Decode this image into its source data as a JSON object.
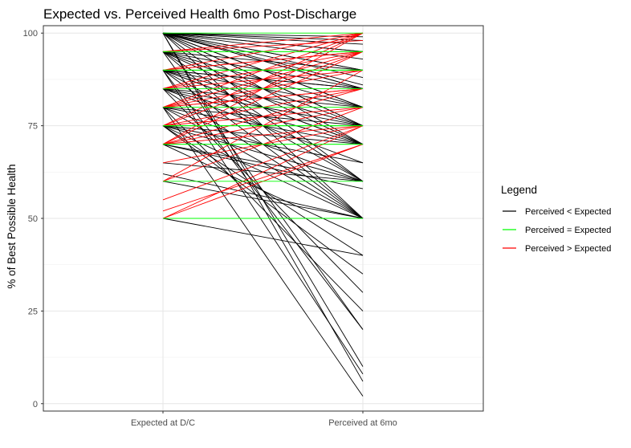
{
  "chart_data": {
    "type": "line",
    "title": "Expected vs. Perceived Health 6mo Post-Discharge",
    "xlabel": "",
    "ylabel": "% of Best Possible Health",
    "categories": [
      "Expected at D/C",
      "Perceived at 6mo"
    ],
    "ylim": [
      -2,
      102
    ],
    "yticks": [
      0,
      25,
      50,
      75,
      100
    ],
    "grid": true,
    "legend": {
      "title": "Legend",
      "position": "right",
      "entries": [
        {
          "key": "less",
          "label": "Perceived < Expected",
          "color": "#000000"
        },
        {
          "key": "equal",
          "label": "Perceived = Expected",
          "color": "#00ff00"
        },
        {
          "key": "greater",
          "label": "Perceived > Expected",
          "color": "#ff0000"
        }
      ]
    },
    "pairs": [
      [
        100,
        100
      ],
      [
        100,
        99
      ],
      [
        100,
        98
      ],
      [
        100,
        97
      ],
      [
        100,
        95
      ],
      [
        100,
        95
      ],
      [
        100,
        93
      ],
      [
        100,
        90
      ],
      [
        100,
        90
      ],
      [
        100,
        88
      ],
      [
        100,
        86
      ],
      [
        100,
        85
      ],
      [
        100,
        85
      ],
      [
        100,
        80
      ],
      [
        100,
        80
      ],
      [
        100,
        75
      ],
      [
        100,
        75
      ],
      [
        100,
        70
      ],
      [
        100,
        60
      ],
      [
        100,
        50
      ],
      [
        100,
        10
      ],
      [
        100,
        6
      ],
      [
        95,
        100
      ],
      [
        95,
        98
      ],
      [
        95,
        95
      ],
      [
        95,
        95
      ],
      [
        95,
        90
      ],
      [
        95,
        85
      ],
      [
        95,
        80
      ],
      [
        95,
        75
      ],
      [
        95,
        70
      ],
      [
        95,
        60
      ],
      [
        95,
        50
      ],
      [
        95,
        20
      ],
      [
        90,
        100
      ],
      [
        90,
        95
      ],
      [
        90,
        95
      ],
      [
        90,
        90
      ],
      [
        90,
        90
      ],
      [
        90,
        85
      ],
      [
        90,
        85
      ],
      [
        90,
        80
      ],
      [
        90,
        75
      ],
      [
        90,
        70
      ],
      [
        90,
        70
      ],
      [
        90,
        60
      ],
      [
        90,
        50
      ],
      [
        90,
        20
      ],
      [
        90,
        8
      ],
      [
        85,
        100
      ],
      [
        85,
        95
      ],
      [
        85,
        90
      ],
      [
        85,
        85
      ],
      [
        85,
        80
      ],
      [
        85,
        75
      ],
      [
        85,
        70
      ],
      [
        85,
        65
      ],
      [
        85,
        50
      ],
      [
        85,
        30
      ],
      [
        80,
        100
      ],
      [
        80,
        95
      ],
      [
        80,
        90
      ],
      [
        80,
        85
      ],
      [
        80,
        85
      ],
      [
        80,
        80
      ],
      [
        80,
        75
      ],
      [
        80,
        70
      ],
      [
        80,
        60
      ],
      [
        80,
        50
      ],
      [
        80,
        25
      ],
      [
        80,
        2
      ],
      [
        75,
        100
      ],
      [
        75,
        95
      ],
      [
        75,
        85
      ],
      [
        75,
        80
      ],
      [
        75,
        75
      ],
      [
        75,
        75
      ],
      [
        75,
        70
      ],
      [
        75,
        65
      ],
      [
        75,
        60
      ],
      [
        75,
        50
      ],
      [
        75,
        40
      ],
      [
        75,
        35
      ],
      [
        70,
        100
      ],
      [
        70,
        95
      ],
      [
        70,
        85
      ],
      [
        70,
        80
      ],
      [
        70,
        75
      ],
      [
        70,
        70
      ],
      [
        70,
        70
      ],
      [
        70,
        60
      ],
      [
        70,
        58
      ],
      [
        70,
        45
      ],
      [
        65,
        75
      ],
      [
        65,
        60
      ],
      [
        62,
        50
      ],
      [
        60,
        90
      ],
      [
        60,
        80
      ],
      [
        60,
        60
      ],
      [
        60,
        50
      ],
      [
        55,
        75
      ],
      [
        52,
        70
      ],
      [
        50,
        75
      ],
      [
        50,
        70
      ],
      [
        50,
        50
      ],
      [
        50,
        40
      ]
    ]
  }
}
